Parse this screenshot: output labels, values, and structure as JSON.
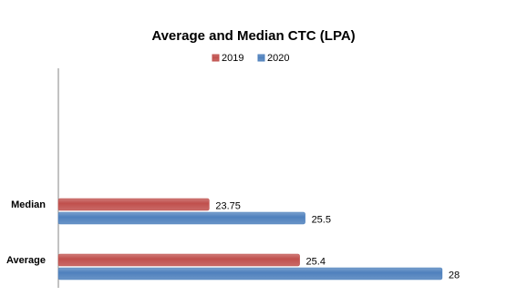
{
  "chart_data": {
    "type": "hbar",
    "title": "Average and Median CTC (LPA)",
    "categories": [
      "Median",
      "Average"
    ],
    "series": [
      {
        "name": "2019",
        "color": "#c0504d",
        "values": [
          23.75,
          25.4
        ]
      },
      {
        "name": "2020",
        "color": "#4f81bd",
        "values": [
          25.5,
          28
        ]
      }
    ],
    "xlim": [
      21,
      29
    ],
    "legend": "top"
  }
}
